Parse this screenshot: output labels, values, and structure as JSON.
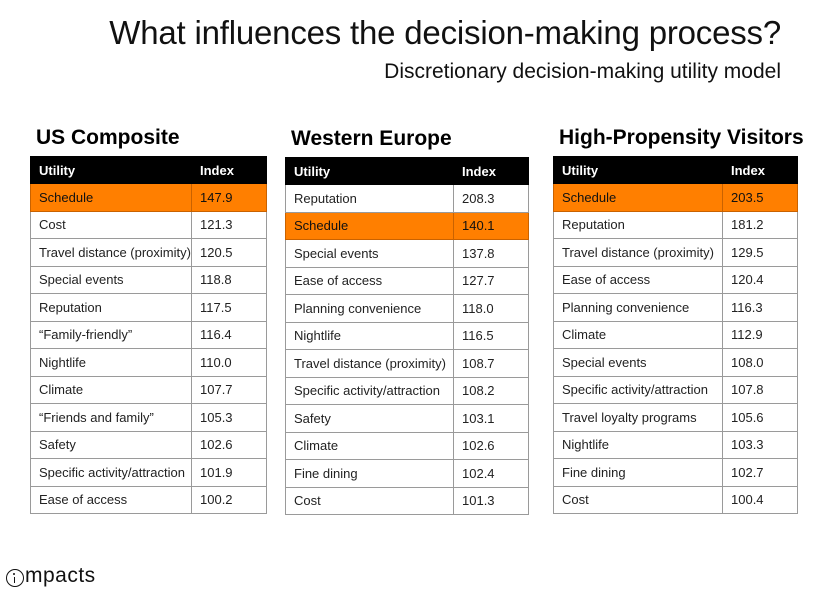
{
  "header": {
    "title": "What influences the decision-making process?",
    "subtitle": "Discretionary decision-making utility model"
  },
  "columns": {
    "utility": "Utility",
    "index": "Index"
  },
  "colors": {
    "highlight": "#ff7f00",
    "header_bg": "#000000"
  },
  "panels": [
    {
      "title": "US Composite",
      "rows": [
        {
          "utility": "Schedule",
          "index": "147.9",
          "highlight": true
        },
        {
          "utility": "Cost",
          "index": "121.3"
        },
        {
          "utility": "Travel distance (proximity)",
          "index": "120.5"
        },
        {
          "utility": "Special events",
          "index": "118.8"
        },
        {
          "utility": "Reputation",
          "index": "117.5"
        },
        {
          "utility": "“Family-friendly”",
          "index": "116.4"
        },
        {
          "utility": "Nightlife",
          "index": "110.0"
        },
        {
          "utility": "Climate",
          "index": "107.7"
        },
        {
          "utility": "“Friends and family”",
          "index": "105.3"
        },
        {
          "utility": "Safety",
          "index": "102.6"
        },
        {
          "utility": "Specific activity/attraction",
          "index": "101.9"
        },
        {
          "utility": "Ease of access",
          "index": "100.2"
        }
      ]
    },
    {
      "title": "Western Europe",
      "rows": [
        {
          "utility": "Reputation",
          "index": "208.3"
        },
        {
          "utility": "Schedule",
          "index": "140.1",
          "highlight": true
        },
        {
          "utility": "Special events",
          "index": "137.8"
        },
        {
          "utility": "Ease of access",
          "index": "127.7"
        },
        {
          "utility": "Planning convenience",
          "index": "118.0"
        },
        {
          "utility": "Nightlife",
          "index": "116.5"
        },
        {
          "utility": "Travel distance (proximity)",
          "index": "108.7"
        },
        {
          "utility": "Specific activity/attraction",
          "index": "108.2"
        },
        {
          "utility": "Safety",
          "index": "103.1"
        },
        {
          "utility": "Climate",
          "index": "102.6"
        },
        {
          "utility": "Fine dining",
          "index": "102.4"
        },
        {
          "utility": "Cost",
          "index": "101.3"
        }
      ]
    },
    {
      "title": "High-Propensity Visitors",
      "rows": [
        {
          "utility": "Schedule",
          "index": "203.5",
          "highlight": true
        },
        {
          "utility": "Reputation",
          "index": "181.2"
        },
        {
          "utility": "Travel distance (proximity)",
          "index": "129.5"
        },
        {
          "utility": "Ease of access",
          "index": "120.4"
        },
        {
          "utility": "Planning convenience",
          "index": "116.3"
        },
        {
          "utility": "Climate",
          "index": "112.9"
        },
        {
          "utility": "Special events",
          "index": "108.0"
        },
        {
          "utility": "Specific activity/attraction",
          "index": "107.8"
        },
        {
          "utility": "Travel loyalty programs",
          "index": "105.6"
        },
        {
          "utility": "Nightlife",
          "index": "103.3"
        },
        {
          "utility": "Fine dining",
          "index": "102.7"
        },
        {
          "utility": "Cost",
          "index": "100.4"
        }
      ]
    }
  ],
  "logo": {
    "text": "mpacts",
    "icon": "info-circle-icon"
  }
}
